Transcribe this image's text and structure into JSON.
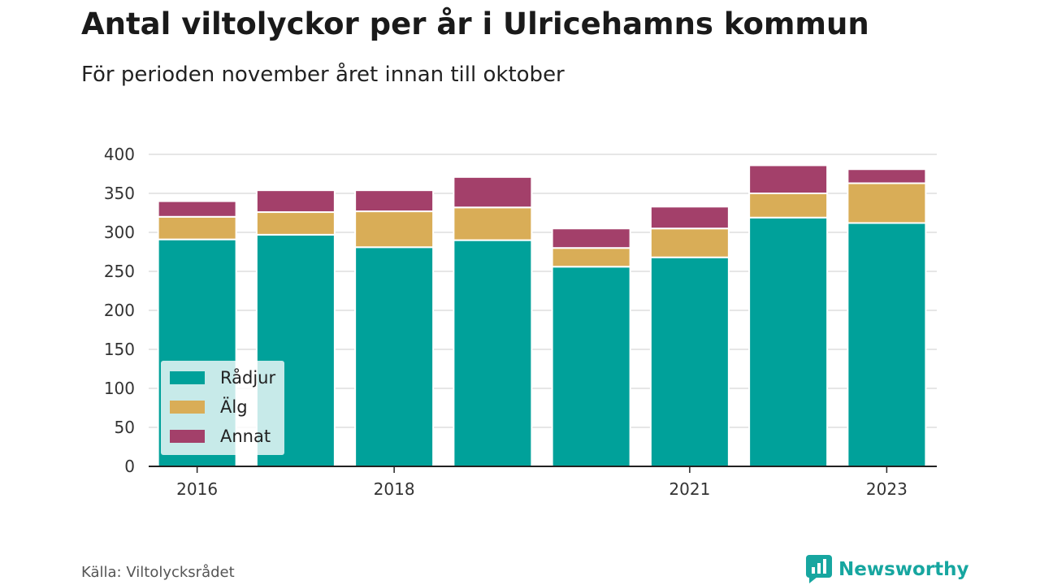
{
  "title": "Antal viltolyckor per år i Ulricehamns kommun",
  "subtitle": "För perioden november året innan till oktober",
  "source": "Källa: Viltolycksrådet",
  "brand": {
    "name": "Newsworthy",
    "icon": "newsworthy-logo-icon",
    "color": "#17a6a0"
  },
  "chart_data": {
    "type": "bar",
    "stacked": true,
    "categories": [
      "2016",
      "2017",
      "2018",
      "2019",
      "2020",
      "2021",
      "2022",
      "2023"
    ],
    "x_tick_labels": [
      "2016",
      "",
      "2018",
      "",
      "",
      "2021",
      "",
      "2023"
    ],
    "series": [
      {
        "name": "Rådjur",
        "color": "#00a19a",
        "values": [
          291,
          297,
          281,
          290,
          256,
          268,
          319,
          312
        ]
      },
      {
        "name": "Älg",
        "color": "#d9ad57",
        "values": [
          29,
          29,
          46,
          42,
          24,
          37,
          31,
          51
        ]
      },
      {
        "name": "Annat",
        "color": "#a3406a",
        "values": [
          20,
          28,
          27,
          39,
          25,
          28,
          36,
          18
        ]
      }
    ],
    "ylim": [
      0,
      400
    ],
    "yticks": [
      0,
      50,
      100,
      150,
      200,
      250,
      300,
      350,
      400
    ],
    "xlabel": "",
    "ylabel": "",
    "grid": true,
    "legend_position": "bottom-left"
  }
}
